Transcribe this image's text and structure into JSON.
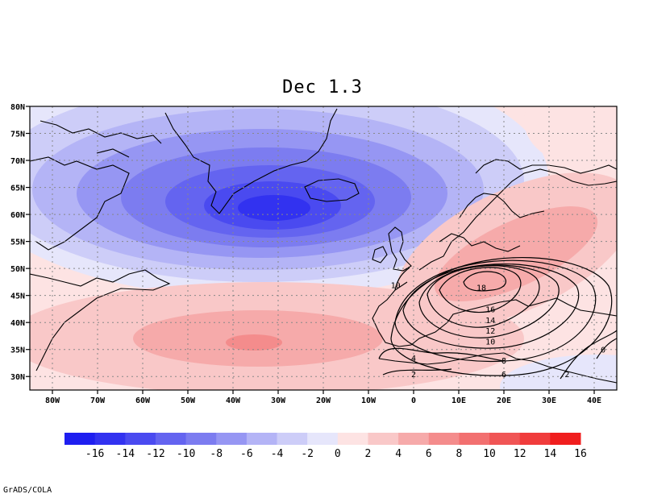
{
  "title": "Dec 1.3",
  "credit": "GrADS/COLA",
  "map": {
    "lon_range": [
      -85,
      45
    ],
    "lat_range": [
      27.5,
      80
    ],
    "lon_ticks": [
      {
        "v": -80,
        "label": "80W"
      },
      {
        "v": -70,
        "label": "70W"
      },
      {
        "v": -60,
        "label": "60W"
      },
      {
        "v": -50,
        "label": "50W"
      },
      {
        "v": -40,
        "label": "40W"
      },
      {
        "v": -30,
        "label": "30W"
      },
      {
        "v": -20,
        "label": "20W"
      },
      {
        "v": -10,
        "label": "10W"
      },
      {
        "v": 0,
        "label": "0"
      },
      {
        "v": 10,
        "label": "10E"
      },
      {
        "v": 20,
        "label": "20E"
      },
      {
        "v": 30,
        "label": "30E"
      },
      {
        "v": 40,
        "label": "40E"
      }
    ],
    "lat_ticks": [
      {
        "v": 30,
        "label": "30N"
      },
      {
        "v": 35,
        "label": "35N"
      },
      {
        "v": 40,
        "label": "40N"
      },
      {
        "v": 45,
        "label": "45N"
      },
      {
        "v": 50,
        "label": "50N"
      },
      {
        "v": 55,
        "label": "55N"
      },
      {
        "v": 60,
        "label": "60N"
      },
      {
        "v": 65,
        "label": "65N"
      },
      {
        "v": 70,
        "label": "70N"
      },
      {
        "v": 75,
        "label": "75N"
      },
      {
        "v": 80,
        "label": "80N"
      }
    ],
    "grid": "dotted",
    "shaded_field": {
      "centers": [
        {
          "name": "negative-anomaly-center",
          "lon": -32,
          "lat": 61.5,
          "value": -16
        },
        {
          "name": "positive-anomaly-center-atlantic",
          "lon": -35,
          "lat": 36,
          "value": 5
        },
        {
          "name": "positive-anomaly-center-europe",
          "lon": 20,
          "lat": 50,
          "value": 4
        }
      ]
    },
    "contour_field": {
      "region": "Mediterranean / Europe",
      "labels": [
        {
          "text": "18",
          "lon": 15,
          "lat": 46.5
        },
        {
          "text": "16",
          "lon": 17,
          "lat": 42.5
        },
        {
          "text": "14",
          "lon": 17,
          "lat": 40.5
        },
        {
          "text": "12",
          "lon": 17,
          "lat": 38.5
        },
        {
          "text": "10",
          "lon": 17,
          "lat": 36.5
        },
        {
          "text": "8",
          "lon": 20,
          "lat": 33
        },
        {
          "text": "6",
          "lon": 20,
          "lat": 30.5
        },
        {
          "text": "4",
          "lon": 0,
          "lat": 33.5
        },
        {
          "text": "2",
          "lon": 0,
          "lat": 30.5
        },
        {
          "text": "10",
          "lon": -4,
          "lat": 47
        },
        {
          "text": "2",
          "lon": 34,
          "lat": 30.5
        },
        {
          "text": "0",
          "lon": 42,
          "lat": 35
        }
      ]
    }
  },
  "colorbar": {
    "labels": [
      "-16",
      "-14",
      "-12",
      "-10",
      "-8",
      "-6",
      "-4",
      "-2",
      "0",
      "2",
      "4",
      "6",
      "8",
      "10",
      "12",
      "14",
      "16"
    ],
    "colors": [
      "#1e1ef0",
      "#3232f0",
      "#4a4af0",
      "#6464f0",
      "#7c7cf0",
      "#9696f3",
      "#b4b4f6",
      "#cdcdf8",
      "#e6e6fb",
      "#fde3e3",
      "#f9c8c8",
      "#f6aaaa",
      "#f48c8c",
      "#f27070",
      "#f05555",
      "#f03c3c",
      "#f01e1e"
    ]
  }
}
